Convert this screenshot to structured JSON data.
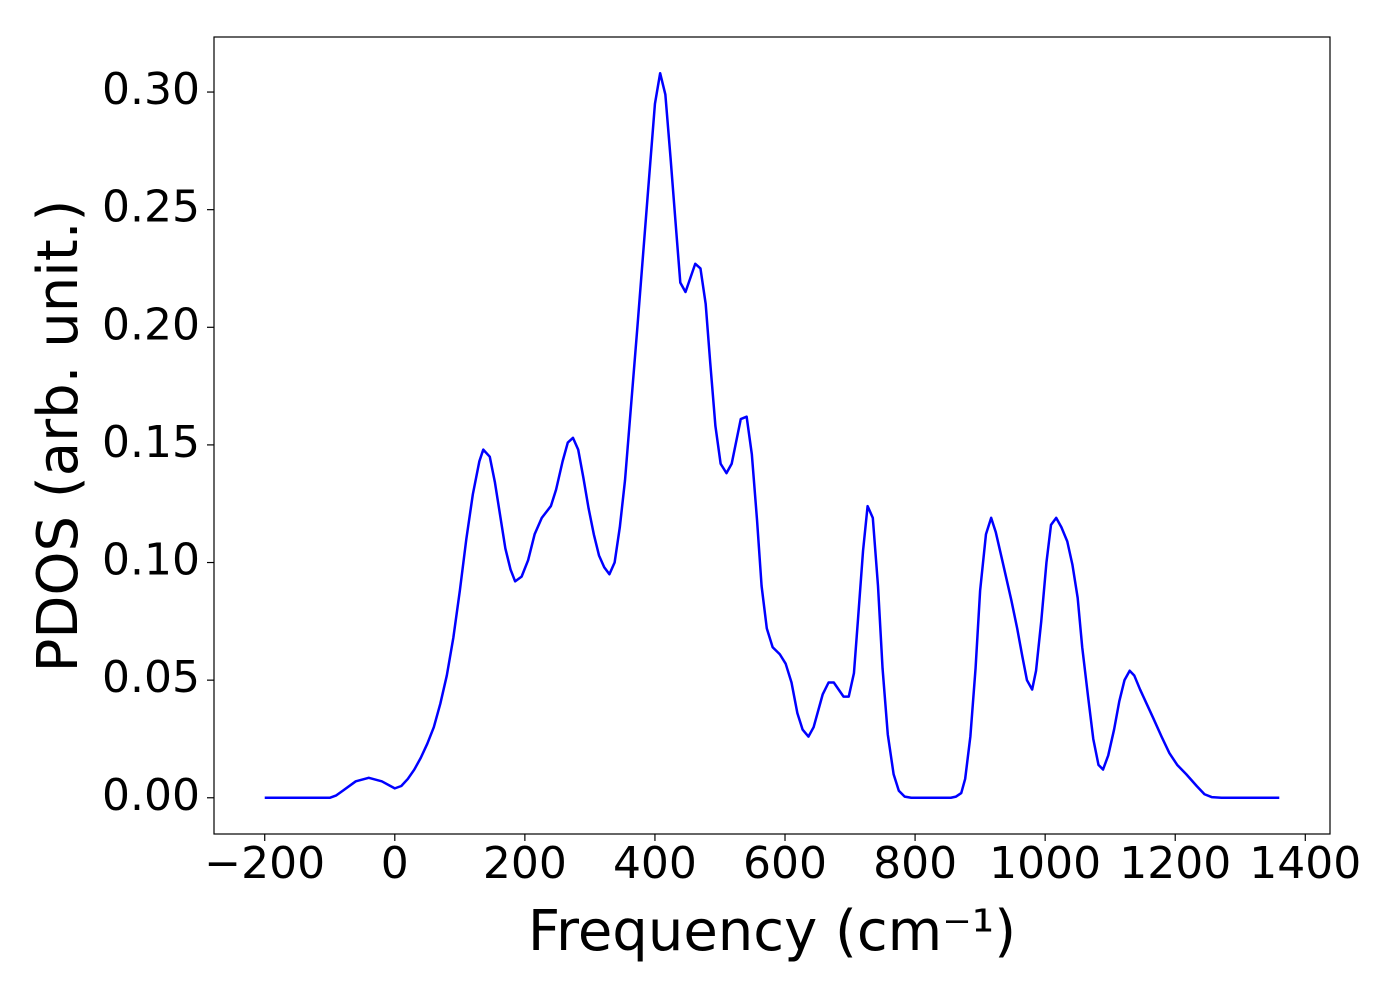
{
  "chart_data": {
    "type": "line",
    "xlabel": "Frequency (cm⁻¹)",
    "ylabel": "PDOS (arb. unit.)",
    "xlim": [
      -278,
      1438
    ],
    "ylim": [
      -0.0154,
      0.3234
    ],
    "xticks": [
      {
        "value": -200,
        "label": "−200"
      },
      0,
      200,
      400,
      600,
      800,
      1000,
      1200,
      1400
    ],
    "yticks": [
      {
        "value": 0,
        "label": "0.00"
      },
      {
        "value": 0.05,
        "label": "0.05"
      },
      {
        "value": 0.1,
        "label": "0.10"
      },
      {
        "value": 0.15,
        "label": "0.15"
      },
      {
        "value": 0.2,
        "label": "0.20"
      },
      {
        "value": 0.25,
        "label": "0.25"
      },
      {
        "value": 0.3,
        "label": "0.30"
      }
    ],
    "grid": false,
    "series": [
      {
        "color": "#0000ff",
        "x": [
          -200,
          -100,
          -90,
          -80,
          -60,
          -40,
          -20,
          0,
          10,
          20,
          30,
          40,
          50,
          60,
          70,
          80,
          90,
          100,
          110,
          120,
          130,
          136,
          146,
          154,
          170,
          178,
          185,
          195,
          205,
          215,
          226,
          240,
          248,
          258,
          266,
          274,
          282,
          290,
          298,
          306,
          314,
          322,
          330,
          338,
          346,
          354,
          373,
          390,
          400,
          408,
          416,
          424,
          433,
          439,
          447,
          462,
          470,
          478,
          485,
          493,
          501,
          510,
          518,
          532,
          541,
          549,
          557,
          564,
          572,
          581,
          592,
          601,
          610,
          619,
          627,
          636,
          644,
          658,
          667,
          675,
          690,
          698,
          706,
          712,
          720,
          727,
          735,
          743,
          750,
          758,
          767,
          775,
          784,
          794,
          855,
          863,
          871,
          877,
          885,
          893,
          900,
          909,
          917,
          924,
          934,
          948,
          957,
          965,
          972,
          980,
          986,
          994,
          1002,
          1009,
          1017,
          1025,
          1034,
          1042,
          1050,
          1057,
          1066,
          1074,
          1082,
          1089,
          1097,
          1106,
          1114,
          1122,
          1130,
          1137,
          1146,
          1156,
          1166,
          1179,
          1191,
          1203,
          1217,
          1233,
          1245,
          1256,
          1271,
          1360
        ],
        "values": [
          0,
          0,
          0.001,
          0.003,
          0.007,
          0.0085,
          0.007,
          0.004,
          0.005,
          0.008,
          0.012,
          0.017,
          0.023,
          0.03,
          0.04,
          0.052,
          0.068,
          0.088,
          0.11,
          0.129,
          0.143,
          0.148,
          0.145,
          0.134,
          0.106,
          0.097,
          0.092,
          0.094,
          0.101,
          0.112,
          0.119,
          0.124,
          0.131,
          0.143,
          0.151,
          0.153,
          0.148,
          0.136,
          0.123,
          0.112,
          0.103,
          0.098,
          0.095,
          0.1,
          0.115,
          0.135,
          0.2,
          0.26,
          0.295,
          0.308,
          0.299,
          0.272,
          0.24,
          0.219,
          0.215,
          0.227,
          0.225,
          0.21,
          0.185,
          0.158,
          0.142,
          0.138,
          0.142,
          0.161,
          0.162,
          0.146,
          0.118,
          0.09,
          0.072,
          0.064,
          0.061,
          0.057,
          0.049,
          0.036,
          0.029,
          0.026,
          0.03,
          0.044,
          0.049,
          0.049,
          0.043,
          0.043,
          0.053,
          0.075,
          0.105,
          0.124,
          0.119,
          0.09,
          0.055,
          0.027,
          0.01,
          0.003,
          0.0005,
          0,
          0,
          0.0005,
          0.002,
          0.008,
          0.026,
          0.055,
          0.088,
          0.112,
          0.119,
          0.113,
          0.101,
          0.084,
          0.072,
          0.06,
          0.05,
          0.046,
          0.054,
          0.075,
          0.1,
          0.116,
          0.119,
          0.115,
          0.109,
          0.099,
          0.085,
          0.064,
          0.043,
          0.025,
          0.014,
          0.012,
          0.018,
          0.029,
          0.041,
          0.05,
          0.054,
          0.052,
          0.046,
          0.04,
          0.034,
          0.026,
          0.019,
          0.014,
          0.01,
          0.005,
          0.0015,
          0.0003,
          0,
          0
        ]
      }
    ]
  }
}
